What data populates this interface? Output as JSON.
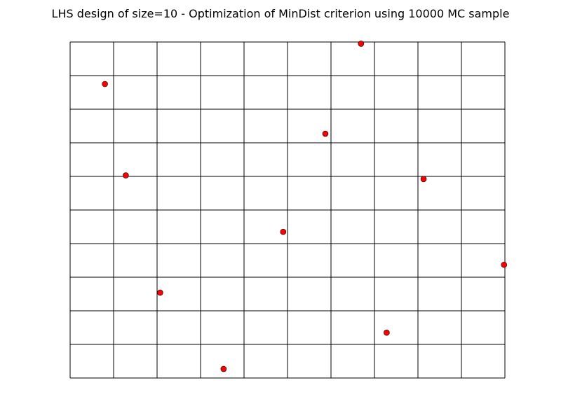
{
  "chart_data": {
    "type": "scatter",
    "title": "LHS design of size=10 - Optimization of MinDist criterion using 10000 MC sample",
    "xlabel": "",
    "ylabel": "",
    "xlim": [
      0,
      1
    ],
    "ylim": [
      0,
      1
    ],
    "grid": true,
    "grid_divisions": 10,
    "marker_color": "#ff0000",
    "marker_edge_color": "#000000",
    "axis_line_color": "#000000",
    "points": [
      {
        "x": 0.08,
        "y": 0.875
      },
      {
        "x": 0.128,
        "y": 0.603
      },
      {
        "x": 0.207,
        "y": 0.254
      },
      {
        "x": 0.353,
        "y": 0.027
      },
      {
        "x": 0.49,
        "y": 0.435
      },
      {
        "x": 0.587,
        "y": 0.727
      },
      {
        "x": 0.669,
        "y": 0.995
      },
      {
        "x": 0.728,
        "y": 0.135
      },
      {
        "x": 0.813,
        "y": 0.592
      },
      {
        "x": 0.998,
        "y": 0.337
      }
    ]
  }
}
